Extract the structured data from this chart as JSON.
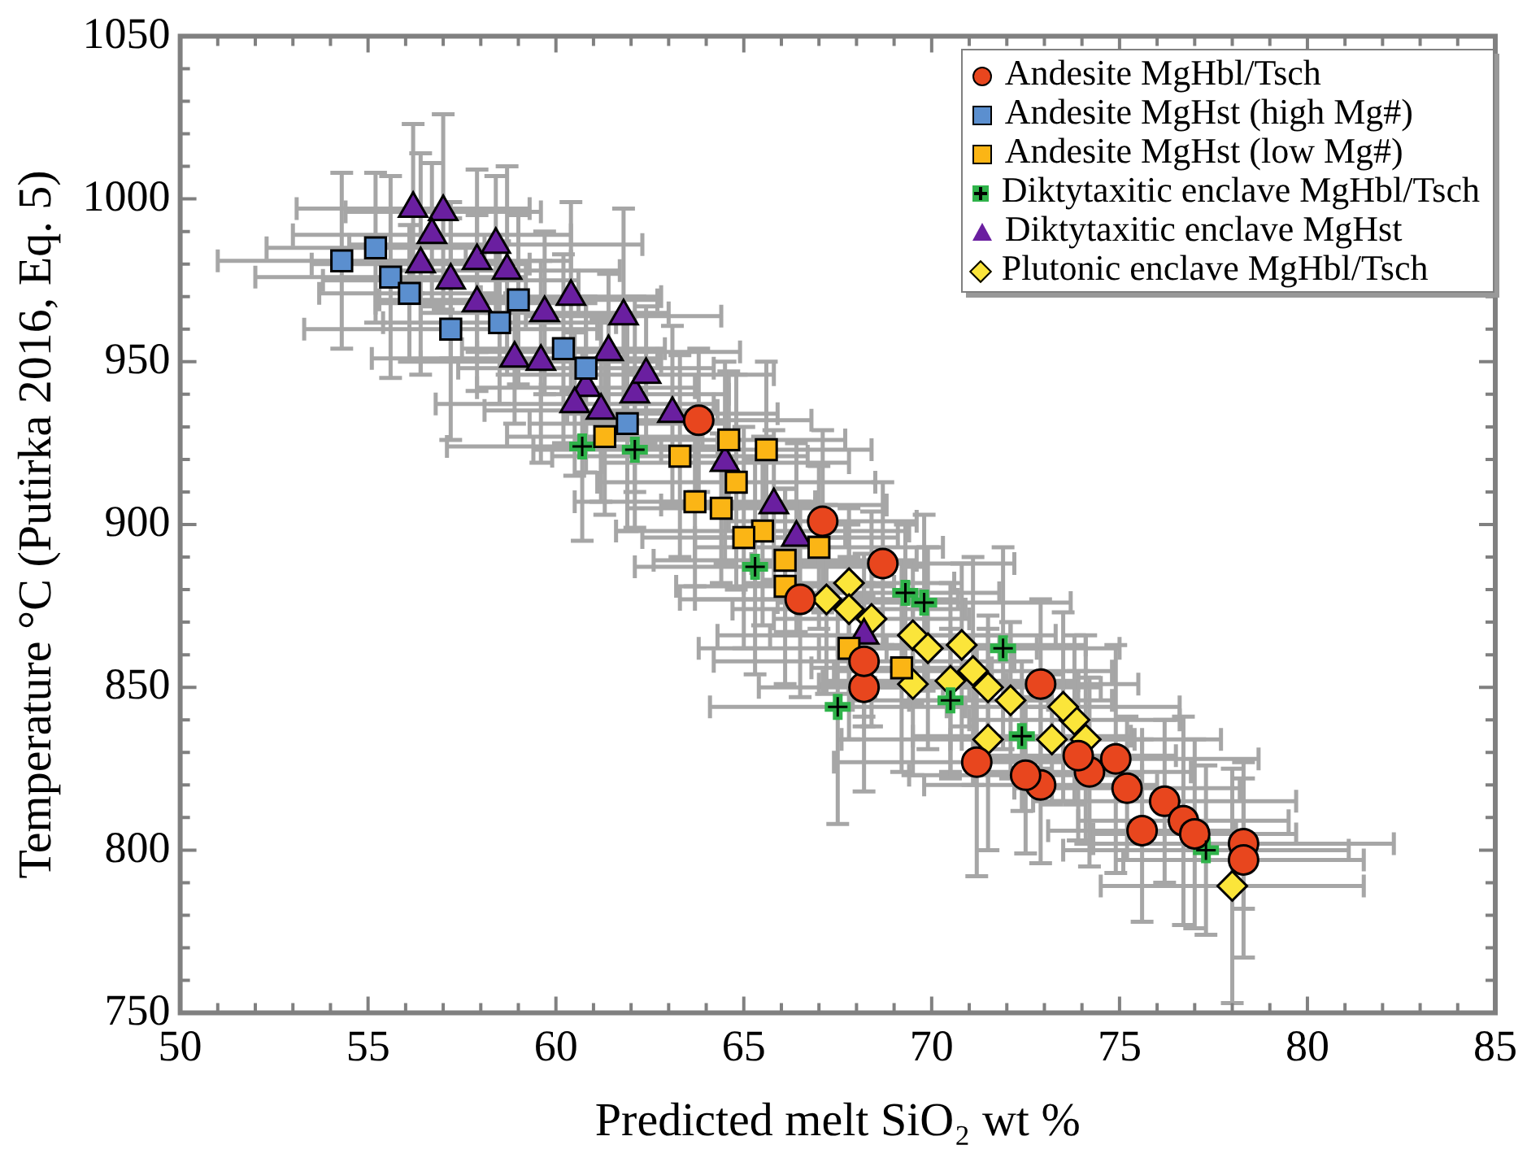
{
  "chart_data": {
    "type": "scatter",
    "xlabel": "Predicted melt SiO₂ wt %",
    "ylabel": "Temperature °C (Putirka 2016, Eq. 5)",
    "legend": "top right",
    "xlim": [
      50,
      85
    ],
    "ylim": [
      750,
      1050
    ],
    "xticks": [
      50,
      {
        "value": 51,
        "label": null
      },
      {
        "value": 52,
        "label": null
      },
      {
        "value": 53,
        "label": null
      },
      {
        "value": 54,
        "label": null
      },
      55,
      {
        "value": 56,
        "label": null
      },
      {
        "value": 57,
        "label": null
      },
      {
        "value": 58,
        "label": null
      },
      {
        "value": 59,
        "label": null
      },
      60,
      {
        "value": 61,
        "label": null
      },
      {
        "value": 62,
        "label": null
      },
      {
        "value": 63,
        "label": null
      },
      {
        "value": 64,
        "label": null
      },
      65,
      {
        "value": 66,
        "label": null
      },
      {
        "value": 67,
        "label": null
      },
      {
        "value": 68,
        "label": null
      },
      {
        "value": 69,
        "label": null
      },
      70,
      {
        "value": 71,
        "label": null
      },
      {
        "value": 72,
        "label": null
      },
      {
        "value": 73,
        "label": null
      },
      {
        "value": 74,
        "label": null
      },
      75,
      {
        "value": 76,
        "label": null
      },
      {
        "value": 77,
        "label": null
      },
      {
        "value": 78,
        "label": null
      },
      {
        "value": 79,
        "label": null
      },
      80,
      {
        "value": 81,
        "label": null
      },
      {
        "value": 82,
        "label": null
      },
      {
        "value": 83,
        "label": null
      },
      {
        "value": 84,
        "label": null
      },
      85
    ],
    "yticks": [
      750,
      {
        "value": 760,
        "label": null
      },
      {
        "value": 770,
        "label": null
      },
      {
        "value": 780,
        "label": null
      },
      {
        "value": 790,
        "label": null
      },
      800,
      {
        "value": 810,
        "label": null
      },
      {
        "value": 820,
        "label": null
      },
      {
        "value": 830,
        "label": null
      },
      {
        "value": 840,
        "label": null
      },
      850,
      {
        "value": 860,
        "label": null
      },
      {
        "value": 870,
        "label": null
      },
      {
        "value": 880,
        "label": null
      },
      {
        "value": 890,
        "label": null
      },
      900,
      {
        "value": 910,
        "label": null
      },
      {
        "value": 920,
        "label": null
      },
      {
        "value": 930,
        "label": null
      },
      {
        "value": 940,
        "label": null
      },
      950,
      {
        "value": 960,
        "label": null
      },
      {
        "value": 970,
        "label": null
      },
      {
        "value": 980,
        "label": null
      },
      {
        "value": 990,
        "label": null
      },
      1000,
      {
        "value": 1010,
        "label": null
      },
      {
        "value": 1020,
        "label": null
      },
      {
        "value": 1030,
        "label": null
      },
      {
        "value": 1040,
        "label": null
      },
      1050
    ],
    "series": [
      {
        "name": "Andesite MgHbl/Tsch",
        "color": "#e8461e",
        "marker": "circle",
        "x": [
          63.8,
          67.1,
          68.7,
          68.2,
          68.2,
          66.5,
          72.9,
          71.2,
          72.9,
          74.2,
          75.2,
          75.6,
          76.2,
          76.7,
          78.3,
          78.3,
          73.9,
          74.9,
          72.5,
          77.0
        ],
        "values": [
          932,
          901,
          888,
          850,
          858,
          877,
          851,
          827,
          820,
          824,
          819,
          806,
          815,
          809,
          802,
          797,
          829,
          828,
          823,
          805
        ],
        "errors": [
          22,
          28,
          25,
          32,
          20,
          30,
          26,
          35,
          24,
          29,
          22,
          28,
          25,
          32,
          20,
          30,
          26,
          35,
          24,
          29
        ],
        "xerrors": [
          3,
          2.5,
          3.5,
          2.8,
          4,
          3.2,
          2.6,
          3.8,
          3.1,
          2.7,
          3,
          2.5,
          3.5,
          2.8,
          4,
          3.2,
          2.6,
          3.8,
          3.1,
          2.7
        ]
      },
      {
        "name": "Andesite MgHst (high Mg#)",
        "color": "#5b8fcf",
        "marker": "square",
        "x": [
          54.3,
          55.2,
          55.6,
          56.1,
          57.2,
          58.5,
          60.2,
          60.8,
          61.9,
          59.0
        ],
        "values": [
          981,
          985,
          976,
          971,
          960,
          962,
          954,
          948,
          931,
          969
        ],
        "errors": [
          27,
          23,
          31,
          21,
          34,
          25,
          29,
          22,
          33,
          26
        ],
        "xerrors": [
          3.3,
          2.9,
          3.6,
          2.4,
          3.9,
          3.1,
          2.7,
          3.4,
          2.6,
          3.7
        ]
      },
      {
        "name": "Andesite MgHst (low Mg#)",
        "color": "#fbb515",
        "marker": "square",
        "x": [
          61.3,
          63.3,
          64.6,
          65.6,
          64.8,
          64.4,
          65.5,
          63.7,
          65.0,
          66.1,
          66.1,
          67.0,
          67.8,
          69.2
        ],
        "values": [
          927,
          921,
          926,
          923,
          913,
          905,
          898,
          907,
          896,
          889,
          881,
          893,
          862,
          856
        ],
        "errors": [
          24,
          31,
          21,
          27,
          33,
          23,
          29,
          26,
          34,
          22,
          30,
          25,
          28,
          32
        ],
        "xerrors": [
          2.6,
          3.4,
          3.1,
          2.8,
          3.7,
          2.5,
          3.9,
          3.2,
          2.7,
          3.5,
          2.9,
          3.3,
          4,
          2.4
        ]
      },
      {
        "name": "Diktytaxitic enclave MgHbl/Tsch",
        "color": "#2fb34a",
        "marker": "cross",
        "x": [
          60.7,
          62.1,
          65.3,
          69.3,
          69.8,
          67.5,
          72.4,
          71.9,
          77.3,
          70.5
        ],
        "values": [
          924,
          923,
          887,
          879,
          876,
          844,
          835,
          862,
          800,
          846
        ],
        "errors": [
          29,
          24,
          33,
          21,
          27,
          36,
          23,
          31,
          26,
          22
        ],
        "xerrors": [
          3.6,
          2.7,
          3.2,
          2.5,
          3.9,
          3.4,
          2.9,
          3.1,
          3.8,
          2.6
        ]
      },
      {
        "name": "Diktytaxitic enclave MgHst",
        "color": "#6a1fa0",
        "marker": "triangle",
        "x": [
          56.2,
          57.0,
          56.7,
          56.4,
          57.2,
          57.9,
          58.4,
          58.7,
          57.9,
          59.7,
          60.4,
          58.9,
          59.6,
          60.8,
          61.4,
          61.8,
          60.5,
          61.2,
          62.1,
          62.4,
          63.1,
          65.8,
          66.4,
          68.2,
          64.5
        ],
        "values": [
          997,
          996,
          989,
          980,
          975,
          981,
          986,
          978,
          968,
          965,
          970,
          951,
          950,
          942,
          953,
          964,
          937,
          935,
          940,
          946,
          934,
          906,
          896,
          866,
          919
        ],
        "errors": [
          26,
          30,
          22,
          34,
          24,
          28,
          21,
          32,
          27,
          25,
          29,
          20,
          31,
          26,
          24,
          33,
          22,
          28,
          30,
          21,
          27,
          23,
          29,
          25,
          31
        ],
        "xerrors": [
          3.1,
          2.6,
          3.7,
          2.9,
          3.4,
          2.5,
          3.9,
          3,
          2.7,
          3.3,
          2.4,
          3.8,
          3.2,
          2.9,
          3.5,
          2.6,
          3.7,
          3.1,
          2.5,
          3.4,
          2.8,
          3,
          2.7,
          3.9,
          3.3
        ]
      },
      {
        "name": "Plutonic enclave MgHbl/Tsch",
        "color": "#fbe53a",
        "marker": "diamond",
        "x": [
          67.8,
          67.2,
          67.8,
          68.4,
          69.5,
          69.9,
          70.8,
          69.5,
          71.1,
          71.5,
          70.5,
          72.1,
          71.5,
          73.2,
          74.1,
          73.8,
          73.5,
          78.0
        ],
        "values": [
          882,
          877,
          874,
          871,
          866,
          862,
          863,
          851,
          855,
          850,
          852,
          846,
          834,
          834,
          834,
          840,
          844,
          789
        ],
        "errors": [
          23,
          29,
          26,
          33,
          21,
          31,
          25,
          28,
          35,
          22,
          30,
          24,
          34,
          20,
          32,
          26,
          29,
          36
        ],
        "xerrors": [
          2.8,
          3.5,
          3.1,
          2.6,
          3.8,
          2.9,
          3.3,
          2.5,
          3.7,
          3,
          3.4,
          2.7,
          3.9,
          2.4,
          3.6,
          2.8,
          3.1,
          3.5
        ]
      }
    ]
  }
}
